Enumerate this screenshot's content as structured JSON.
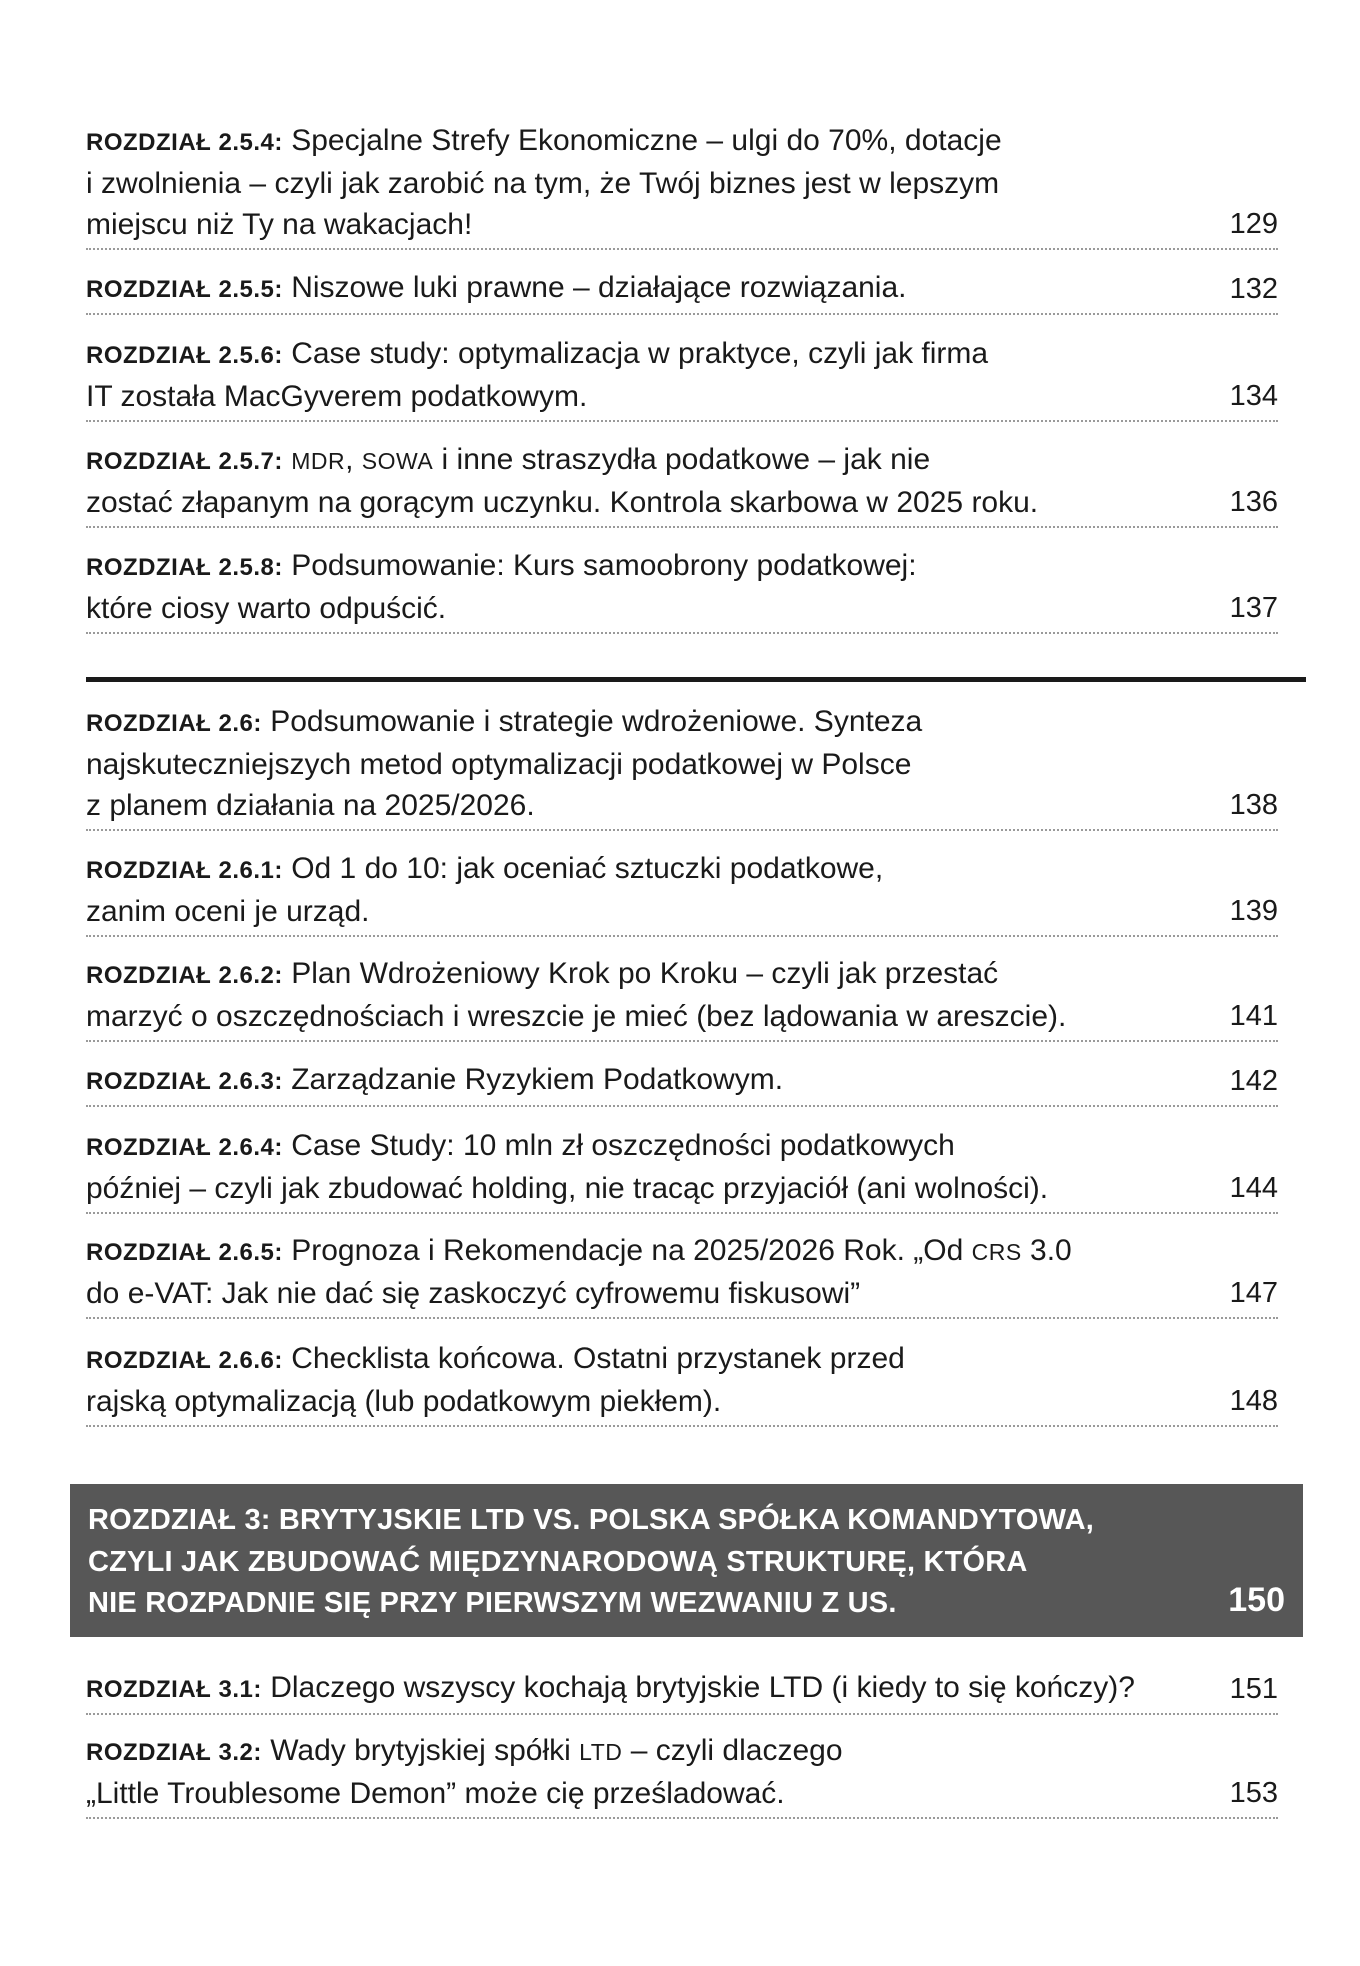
{
  "entries": [
    {
      "label": "ROZDZIAŁ 2.5.4:",
      "lines": [
        [
          "Specjalne Strefy Ekonomiczne – ulgi do 70%, dotacje"
        ],
        [
          "i zwolnienia – czyli jak zarobić na tym, że Twój biznes jest w lepszym"
        ],
        [
          "miejscu niż Ty na wakacjach!"
        ]
      ],
      "page": "129"
    },
    {
      "label": "ROZDZIAŁ 2.5.5:",
      "lines": [
        [
          "Niszowe luki prawne – działające rozwiązania."
        ]
      ],
      "page": "132"
    },
    {
      "label": "ROZDZIAŁ 2.5.6:",
      "lines": [
        [
          "Case study: optymalizacja w praktyce, czyli jak firma"
        ],
        [
          "IT została MacGyverem podatkowym."
        ]
      ],
      "page": "134"
    },
    {
      "label": "ROZDZIAŁ 2.5.7:",
      "lines": [
        [
          {
            "sc": "MDR"
          },
          ", ",
          {
            "sc": "SOWA"
          },
          " i inne straszydła podatkowe – jak nie"
        ],
        [
          "zostać złapanym na gorącym uczynku. Kontrola skarbowa w 2025 roku."
        ]
      ],
      "page": "136"
    },
    {
      "label": "ROZDZIAŁ 2.5.8:",
      "lines": [
        [
          "Podsumowanie: Kurs samoobrony podatkowej:"
        ],
        [
          "które ciosy warto odpuścić."
        ]
      ],
      "page": "137"
    },
    {
      "label": "ROZDZIAŁ 2.6:",
      "lines": [
        [
          "Podsumowanie i strategie wdrożeniowe. Synteza"
        ],
        [
          "najskuteczniejszych metod optymalizacji podatkowej w Polsce"
        ],
        [
          "z planem działania na 2025/2026."
        ]
      ],
      "page": "138"
    },
    {
      "label": "ROZDZIAŁ 2.6.1:",
      "lines": [
        [
          "Od 1 do 10: jak oceniać sztuczki podatkowe,"
        ],
        [
          "zanim oceni je urząd."
        ]
      ],
      "page": "139"
    },
    {
      "label": "ROZDZIAŁ 2.6.2:",
      "lines": [
        [
          "Plan Wdrożeniowy Krok po Kroku – czyli jak przestać"
        ],
        [
          "marzyć o oszczędnościach i wreszcie je mieć (bez lądowania w areszcie)."
        ]
      ],
      "page": "141"
    },
    {
      "label": "ROZDZIAŁ 2.6.3:",
      "lines": [
        [
          "Zarządzanie Ryzykiem Podatkowym."
        ]
      ],
      "page": "142"
    },
    {
      "label": "ROZDZIAŁ 2.6.4:",
      "lines": [
        [
          "Case Study: 10 mln zł oszczędności podatkowych"
        ],
        [
          "później – czyli jak zbudować holding, nie tracąc przyjaciół (ani wolności)."
        ]
      ],
      "page": "144"
    },
    {
      "label": "ROZDZIAŁ 2.6.5:",
      "lines": [
        [
          "Prognoza i Rekomendacje na 2025/2026 Rok. „Od ",
          {
            "sc": "CRS"
          },
          " 3.0"
        ],
        [
          "do e-VAT: Jak nie dać się zaskoczyć cyfrowemu fiskusowi”"
        ]
      ],
      "page": "147"
    },
    {
      "label": "ROZDZIAŁ 2.6.6:",
      "lines": [
        [
          "Checklista końcowa. Ostatni przystanek przed"
        ],
        [
          "rajską optymalizacją (lub podatkowym piekłem)."
        ]
      ],
      "page": "148"
    },
    {
      "label": "ROZDZIAŁ 3.1:",
      "lines": [
        [
          "Dlaczego wszyscy kochają brytyjskie LTD (i kiedy to się kończy)?"
        ]
      ],
      "page": "151"
    },
    {
      "label": "ROZDZIAŁ 3.2:",
      "lines": [
        [
          "Wady brytyjskiej spółki ",
          {
            "sc": "LTD"
          },
          " – czyli dlaczego"
        ],
        [
          "„Little Troublesome Demon” może cię prześladować."
        ]
      ],
      "page": "153"
    }
  ],
  "chapter": {
    "lines": [
      "ROZDZIAŁ 3: BRYTYJSKIE LTD VS. POLSKA SPÓŁKA KOMANDYTOWA,",
      "CZYLI JAK ZBUDOWAĆ MIĘDZYNARODOWĄ STRUKTURĘ, KTÓRA",
      "NIE ROZPADNIE SIĘ PRZY PIERWSZYM WEZWANIU Z US."
    ],
    "page": "150",
    "background": "#575757"
  }
}
